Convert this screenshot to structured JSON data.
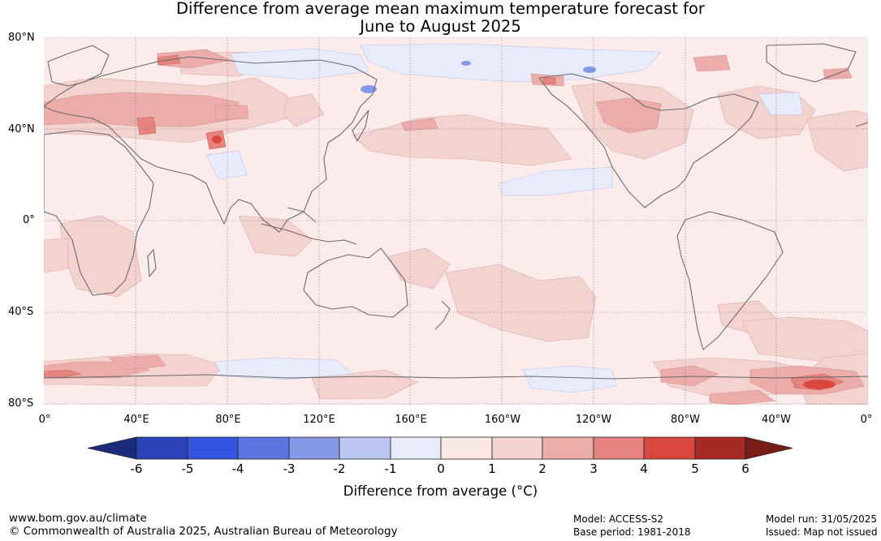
{
  "title_line1": "Difference from average mean maximum temperature forecast for",
  "title_line2": "June to August 2025",
  "lat_labels": [
    "80°N",
    "40°N",
    "0°",
    "40°S",
    "80°S"
  ],
  "lon_labels": [
    "0°",
    "40°E",
    "80°E",
    "120°E",
    "160°E",
    "160°W",
    "120°W",
    "80°W",
    "40°W",
    "0°"
  ],
  "colorbar": {
    "ticks": [
      "-6",
      "-5",
      "-4",
      "-3",
      "-2",
      "-1",
      "0",
      "1",
      "2",
      "3",
      "4",
      "5",
      "6"
    ],
    "colors": [
      "#1b2a7a",
      "#2a44b8",
      "#3355e0",
      "#5a74e0",
      "#8598e8",
      "#bcc6f3",
      "#e8ebfb",
      "#fbe9e8",
      "#f4d2d0",
      "#ecadaa",
      "#e5847e",
      "#d9473e",
      "#a82a24",
      "#7a1c17"
    ],
    "label": "Difference from average (°C)"
  },
  "footer": {
    "website": "www.bom.gov.au/climate",
    "copyright": "© Commonwealth of Australia 2025, Australian Bureau of Meteorology",
    "model": "Model: ACCESS-S2",
    "base_period": "Base period: 1981-2018",
    "model_run": "Model run: 31/05/2025",
    "issued": "Issued: Map not issued"
  }
}
